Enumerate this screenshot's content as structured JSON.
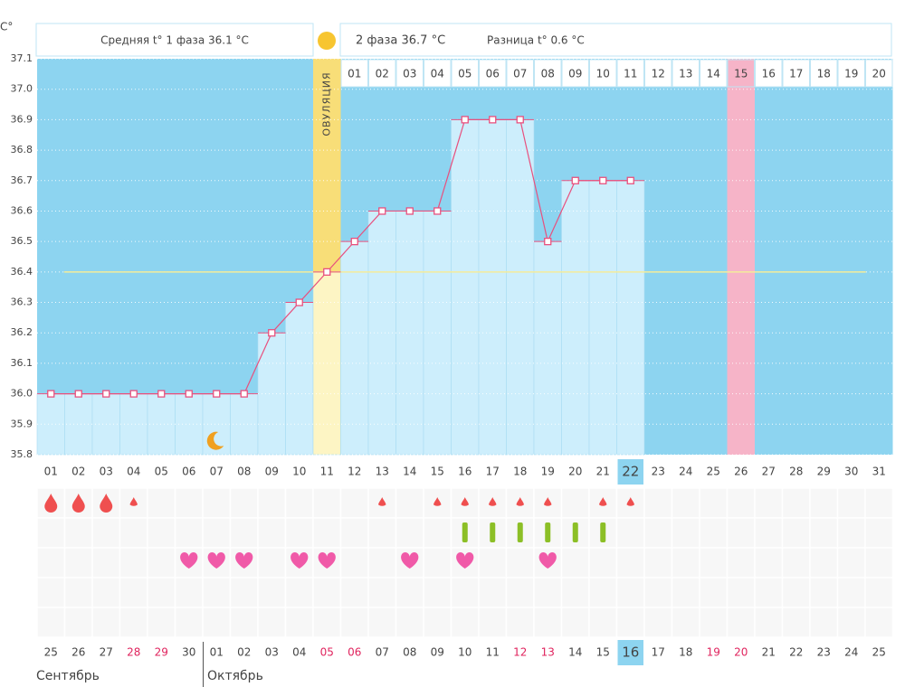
{
  "chart_data": {
    "type": "line",
    "y_label": "C°",
    "phase1_text": "Средняя t° 1 фаза 36.1 °C",
    "phase2_text": "2 фаза 36.7 °C",
    "difference_text": "Разница t° 0.6 °C",
    "ovulation_label": "ОВУЛЯЦИЯ",
    "ovulation_day": "11",
    "current_day": "22",
    "highlight_day": "26",
    "categories": [
      "01",
      "02",
      "03",
      "04",
      "05",
      "06",
      "07",
      "08",
      "09",
      "10",
      "11",
      "12",
      "13",
      "14",
      "15",
      "16",
      "17",
      "18",
      "19",
      "20",
      "21",
      "22",
      "23",
      "24",
      "25",
      "26",
      "27",
      "28",
      "29",
      "30",
      "31"
    ],
    "values": [
      36.0,
      36.0,
      36.0,
      36.0,
      36.0,
      36.0,
      36.0,
      36.0,
      36.2,
      36.3,
      36.4,
      36.5,
      36.6,
      36.6,
      36.6,
      36.9,
      36.9,
      36.9,
      36.5,
      36.7,
      36.7,
      36.7,
      null,
      null,
      null,
      null,
      null,
      null,
      null,
      null,
      null
    ],
    "phase2_days": [
      null,
      null,
      null,
      null,
      null,
      null,
      null,
      null,
      null,
      null,
      null,
      "01",
      "02",
      "03",
      "04",
      "05",
      "06",
      "07",
      "08",
      "09",
      "10",
      "11",
      "12",
      "13",
      "14",
      "15",
      "16",
      "17",
      "18",
      "19",
      "20"
    ],
    "coverline": 36.4,
    "ylim": [
      35.8,
      37.1
    ],
    "yticks": [
      35.8,
      35.9,
      {
        "value": 36.0,
        "label": "36.0"
      },
      36.1,
      36.2,
      36.3,
      36.4,
      36.5,
      36.6,
      36.7,
      36.8,
      36.9,
      {
        "value": 37.0,
        "label": "37.0"
      },
      37.1
    ],
    "grid": true,
    "line_color": "#e8507e",
    "bleeding_heavy": [
      "01",
      "02",
      "03"
    ],
    "bleeding_light": [
      "04",
      "13",
      "15",
      "16",
      "17",
      "18",
      "19",
      "21",
      "22"
    ],
    "pills": [
      "16",
      "17",
      "18",
      "19",
      "20",
      "21"
    ],
    "hearts": [
      "06",
      "07",
      "08",
      "10",
      "11",
      "14",
      "16",
      "19"
    ],
    "moon_days": [
      "07"
    ],
    "dates": [
      "25",
      "26",
      "27",
      "28",
      "29",
      "30",
      "01",
      "02",
      "03",
      "04",
      "05",
      "06",
      "07",
      "08",
      "09",
      "10",
      "11",
      "12",
      "13",
      "14",
      "15",
      "16",
      "17",
      "18",
      "19",
      "20",
      "21",
      "22",
      "23",
      "24",
      "25"
    ],
    "weekend_days": [
      "04",
      "05",
      "11",
      "12",
      "18",
      "19",
      "25",
      "26"
    ],
    "months": [
      {
        "name": "Сентябрь",
        "start_day": "01"
      },
      {
        "name": "Октябрь",
        "start_day": "07"
      }
    ]
  }
}
